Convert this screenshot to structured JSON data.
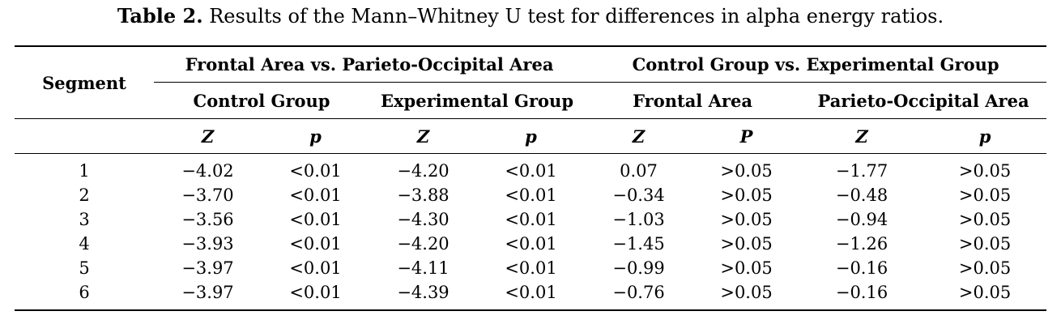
{
  "caption": {
    "label": "Table 2.",
    "text": " Results of the Mann–Whitney U test for differences in alpha energy ratios."
  },
  "table": {
    "segment_header": "Segment",
    "group_headers": [
      "Frontal Area vs. Parieto-Occipital Area",
      "Control Group vs. Experimental Group"
    ],
    "sub_headers": [
      "Control Group",
      "Experimental Group",
      "Frontal Area",
      "Parieto-Occipital Area"
    ],
    "stat_headers": [
      "Z",
      "p",
      "Z",
      "p",
      "Z",
      "P",
      "Z",
      "p"
    ],
    "rows": [
      [
        "1",
        "−4.02",
        "<0.01",
        "−4.20",
        "<0.01",
        "0.07",
        ">0.05",
        "−1.77",
        ">0.05"
      ],
      [
        "2",
        "−3.70",
        "<0.01",
        "−3.88",
        "<0.01",
        "−0.34",
        ">0.05",
        "−0.48",
        ">0.05"
      ],
      [
        "3",
        "−3.56",
        "<0.01",
        "−4.30",
        "<0.01",
        "−1.03",
        ">0.05",
        "−0.94",
        ">0.05"
      ],
      [
        "4",
        "−3.93",
        "<0.01",
        "−4.20",
        "<0.01",
        "−1.45",
        ">0.05",
        "−1.26",
        ">0.05"
      ],
      [
        "5",
        "−3.97",
        "<0.01",
        "−4.11",
        "<0.01",
        "−0.99",
        ">0.05",
        "−0.16",
        ">0.05"
      ],
      [
        "6",
        "−3.97",
        "<0.01",
        "−4.39",
        "<0.01",
        "−0.76",
        ">0.05",
        "−0.16",
        ">0.05"
      ]
    ]
  }
}
